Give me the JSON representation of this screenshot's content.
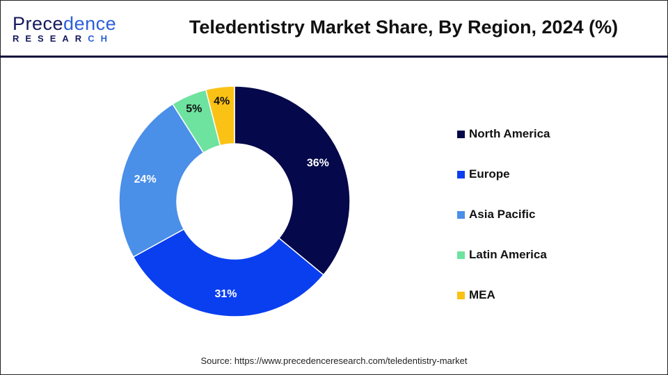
{
  "header": {
    "title": "Teledentistry Market Share, By Region, 2024 (%)",
    "logo_line1": "Precedence",
    "logo_line2": "RESEARCH"
  },
  "chart_data": {
    "type": "pie",
    "donut": true,
    "title": "Teledentistry Market Share, By Region, 2024 (%)",
    "categories": [
      "North America",
      "Europe",
      "Asia Pacific",
      "Latin America",
      "MEA"
    ],
    "values": [
      36,
      31,
      24,
      5,
      4
    ],
    "labels": [
      "36%",
      "31%",
      "24%",
      "5%",
      "4%"
    ],
    "colors": [
      "#05084a",
      "#0a3ff0",
      "#4a8fe8",
      "#6ee29f",
      "#fbc216"
    ],
    "label_colors": [
      "#ffffff",
      "#ffffff",
      "#ffffff",
      "#111111",
      "#111111"
    ],
    "legend_position": "right"
  },
  "source": "Source: https://www.precedenceresearch.com/teledentistry-market"
}
